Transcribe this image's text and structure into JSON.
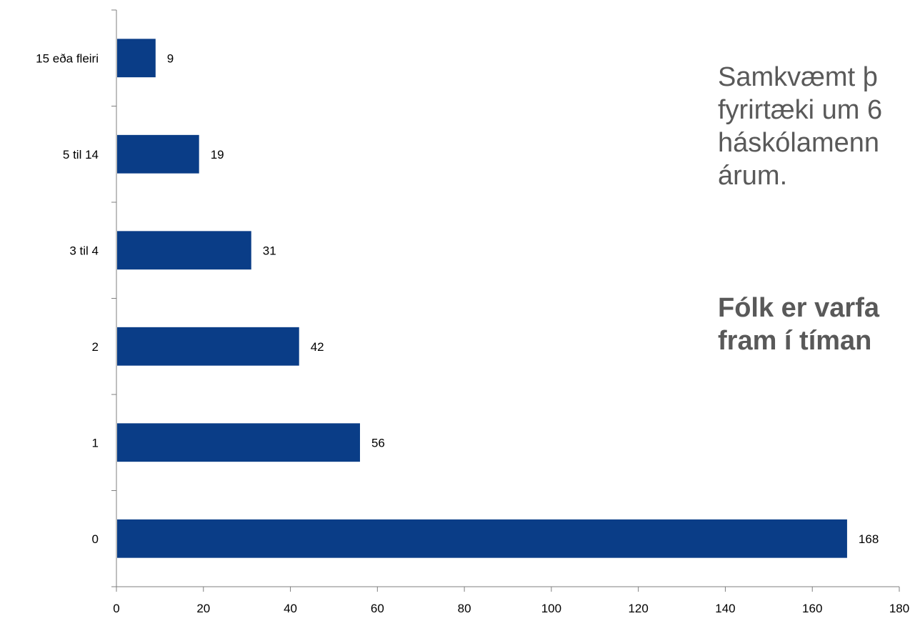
{
  "chart_data": {
    "type": "bar",
    "orientation": "horizontal",
    "categories": [
      "15 eða fleiri",
      "5 til 14",
      "3 til 4",
      "2",
      "1",
      "0"
    ],
    "values": [
      9,
      19,
      31,
      42,
      56,
      168
    ],
    "data_labels": [
      "9",
      "19",
      "31",
      "42",
      "56",
      "168"
    ],
    "xlim": [
      0,
      180
    ],
    "x_ticks": [
      "0",
      "20",
      "40",
      "60",
      "80",
      "100",
      "120",
      "140",
      "160",
      "180"
    ],
    "grid": false,
    "bar_color": "#0a3d87"
  },
  "side_text": {
    "lines": [
      "Samkvæmt þ",
      "fyrirtæki um 6",
      "háskólamenn",
      "árum."
    ],
    "emphasis": [
      "Fólk er varfa",
      "fram í tíman"
    ]
  }
}
